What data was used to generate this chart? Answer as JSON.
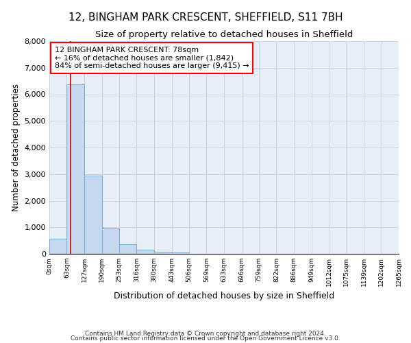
{
  "title": "12, BINGHAM PARK CRESCENT, SHEFFIELD, S11 7BH",
  "subtitle": "Size of property relative to detached houses in Sheffield",
  "xlabel": "Distribution of detached houses by size in Sheffield",
  "ylabel": "Number of detached properties",
  "footnote1": "Contains HM Land Registry data © Crown copyright and database right 2024.",
  "footnote2": "Contains public sector information licensed under the Open Government Licence v3.0.",
  "annotation_line1": "12 BINGHAM PARK CRESCENT: 78sqm",
  "annotation_line2": "← 16% of detached houses are smaller (1,842)",
  "annotation_line3": "84% of semi-detached houses are larger (9,415) →",
  "bin_edges": [
    0,
    63,
    127,
    190,
    253,
    316,
    380,
    443,
    506,
    569,
    633,
    696,
    759,
    822,
    886,
    949,
    1012,
    1075,
    1139,
    1202,
    1265
  ],
  "bin_labels": [
    "0sqm",
    "63sqm",
    "127sqm",
    "190sqm",
    "253sqm",
    "316sqm",
    "380sqm",
    "443sqm",
    "506sqm",
    "569sqm",
    "633sqm",
    "696sqm",
    "759sqm",
    "822sqm",
    "886sqm",
    "949sqm",
    "1012sqm",
    "1075sqm",
    "1139sqm",
    "1202sqm",
    "1265sqm"
  ],
  "bar_heights": [
    580,
    6380,
    2930,
    960,
    370,
    150,
    70,
    60,
    0,
    0,
    0,
    0,
    0,
    0,
    0,
    0,
    0,
    0,
    0,
    0
  ],
  "bar_color": "#c5d8f0",
  "bar_edgecolor": "#7aadd4",
  "bar_linewidth": 0.7,
  "redline_x": 78,
  "ylim": [
    0,
    8000
  ],
  "yticks": [
    0,
    1000,
    2000,
    3000,
    4000,
    5000,
    6000,
    7000,
    8000
  ],
  "grid_color": "#c8d4e8",
  "bg_color": "#e8eef8",
  "title_fontsize": 11,
  "subtitle_fontsize": 9.5,
  "red_line_color": "#cc0000",
  "annotation_fontsize": 8,
  "xlabel_fontsize": 9,
  "ylabel_fontsize": 8.5,
  "xtick_fontsize": 6.5,
  "ytick_fontsize": 8,
  "footnote_fontsize": 6.5
}
